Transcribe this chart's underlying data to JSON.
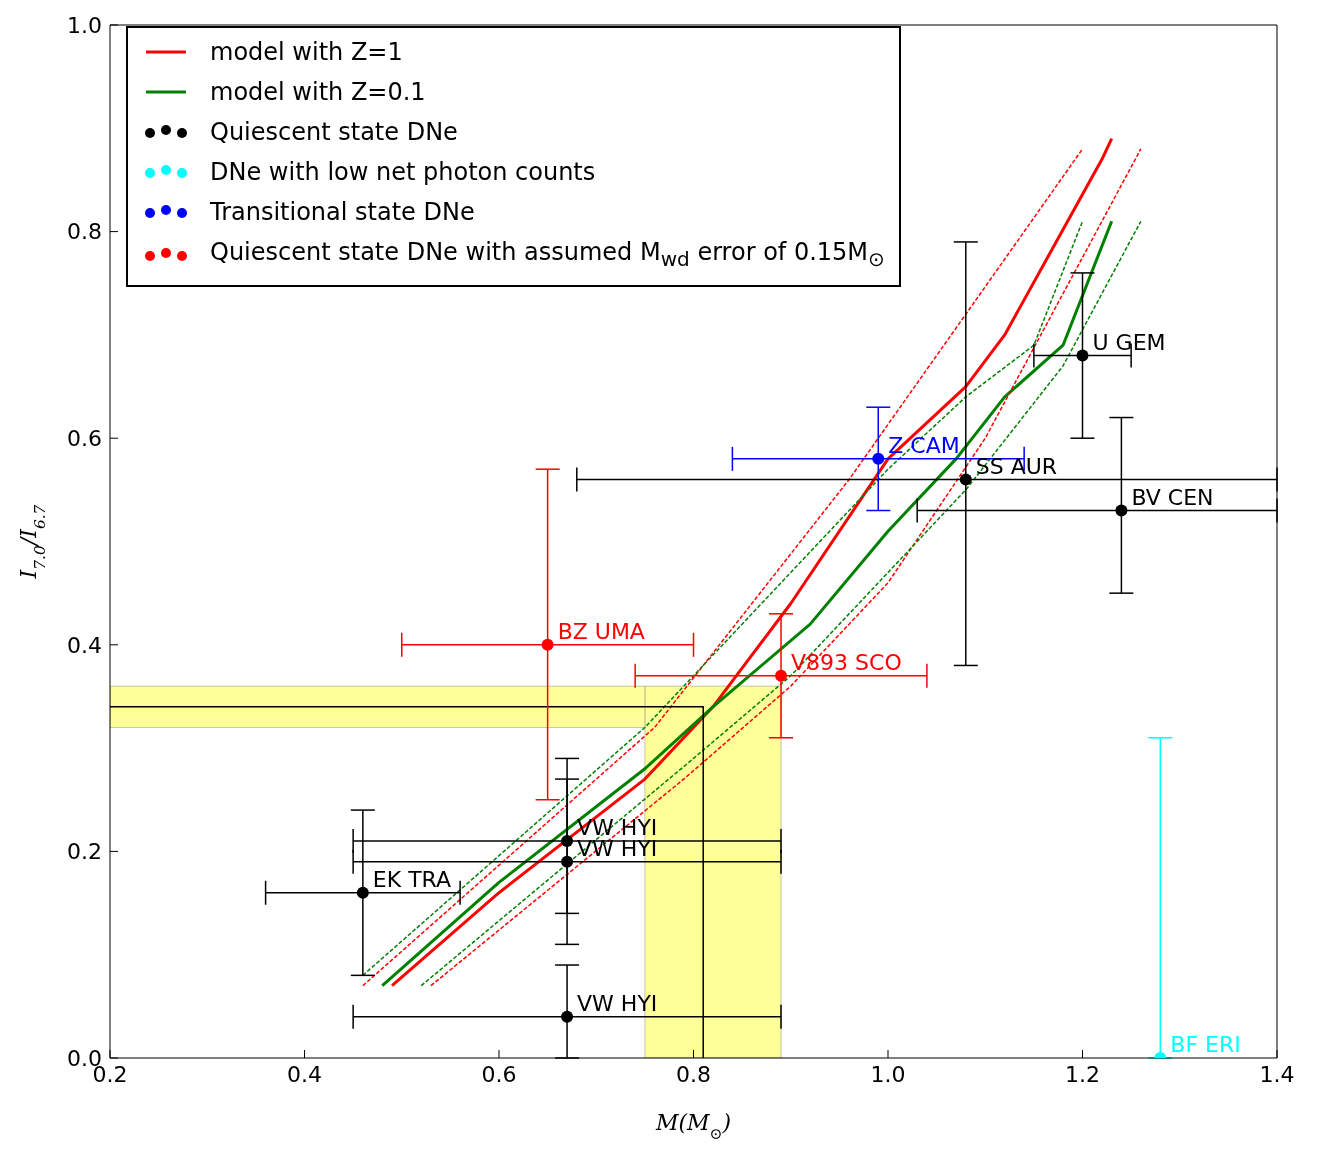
{
  "chart_data": {
    "type": "scatter",
    "xlabel": "M(M$_{⊙}$)",
    "ylabel": "I$_{7.0}$/I$_{6.7}$",
    "xlim": [
      0.2,
      1.4
    ],
    "ylim": [
      0,
      1.0
    ],
    "xticks": [
      {
        "value": 0.2,
        "label": "0.2"
      },
      {
        "value": 0.4,
        "label": "0.4"
      },
      {
        "value": 0.6,
        "label": "0.6"
      },
      {
        "value": 0.8,
        "label": "0.8"
      },
      {
        "value": 1.0,
        "label": "1.0"
      },
      {
        "value": 1.2,
        "label": "1.2"
      },
      {
        "value": 1.4,
        "label": "1.4"
      }
    ],
    "yticks": [
      {
        "value": 0,
        "label": "0.0"
      },
      {
        "value": 0.2,
        "label": "0.2"
      },
      {
        "value": 0.4,
        "label": "0.4"
      },
      {
        "value": 0.6,
        "label": "0.6"
      },
      {
        "value": 0.8,
        "label": "0.8"
      },
      {
        "value": 1.0,
        "label": "1.0"
      }
    ],
    "legend": "top left",
    "marker": "circle",
    "grid": false,
    "bands": [
      {
        "axis": "x",
        "from": 0.75,
        "to": 0.89,
        "color": "#ffff99"
      },
      {
        "axis": "y",
        "from": 0.32,
        "to": 0.36,
        "color": "#ffff99"
      }
    ],
    "series": [
      {
        "type": "line",
        "name": "model with Z=1",
        "color": "#ff0000",
        "line_style": "solid",
        "marker": "none",
        "x": [
          0.49,
          0.6,
          0.75,
          0.82,
          0.9,
          1.0,
          1.08,
          1.12,
          1.22,
          1.23
        ],
        "values": [
          0.07,
          0.16,
          0.27,
          0.34,
          0.44,
          0.58,
          0.65,
          0.7,
          0.87,
          0.89
        ]
      },
      {
        "type": "line",
        "name": "model with Z=0.1",
        "color": "#008000",
        "line_style": "solid",
        "marker": "none",
        "x": [
          0.48,
          0.6,
          0.75,
          0.82,
          0.92,
          1.0,
          1.07,
          1.12,
          1.18,
          1.23
        ],
        "values": [
          0.07,
          0.17,
          0.28,
          0.34,
          0.42,
          0.51,
          0.58,
          0.64,
          0.69,
          0.81
        ]
      },
      {
        "type": "line",
        "color": "#ff0000",
        "line_style": "dashed",
        "marker": "none",
        "x": [
          0.46,
          0.76,
          0.86,
          0.96,
          1.08,
          1.2
        ],
        "values": [
          0.07,
          0.32,
          0.44,
          0.56,
          0.72,
          0.88
        ]
      },
      {
        "type": "line",
        "color": "#ff0000",
        "line_style": "dashed",
        "marker": "none",
        "x": [
          0.53,
          0.79,
          0.9,
          1.0,
          1.1,
          1.26
        ],
        "values": [
          0.07,
          0.27,
          0.36,
          0.46,
          0.6,
          0.88
        ]
      },
      {
        "type": "line",
        "color": "#008000",
        "line_style": "dashed",
        "marker": "none",
        "x": [
          0.46,
          0.75,
          0.9,
          1.0,
          1.08,
          1.15,
          1.2
        ],
        "values": [
          0.08,
          0.32,
          0.47,
          0.57,
          0.64,
          0.69,
          0.81
        ]
      },
      {
        "type": "line",
        "color": "#008000",
        "line_style": "dashed",
        "marker": "none",
        "x": [
          0.52,
          0.8,
          0.9,
          1.0,
          1.08,
          1.18,
          1.26
        ],
        "values": [
          0.07,
          0.29,
          0.37,
          0.47,
          0.55,
          0.67,
          0.81
        ]
      },
      {
        "type": "line",
        "color": "#000000",
        "line_style": "solid",
        "marker": "none",
        "x": [
          0.2,
          0.81,
          0.81
        ],
        "values": [
          0.34,
          0.34,
          0
        ]
      },
      {
        "name": "Quiescent state DNe",
        "color": "#000000",
        "x": [
          0.46,
          0.67,
          0.67,
          0.67,
          1.08,
          1.24,
          1.2
        ],
        "values": [
          0.16,
          0.21,
          0.19,
          0.04,
          0.56,
          0.53,
          0.68
        ],
        "errors": [
          [
            0.08,
            0.24
          ],
          [
            0.14,
            0.29
          ],
          [
            0.11,
            0.27
          ],
          [
            0,
            0.09
          ],
          [
            0.38,
            0.79
          ],
          [
            0.45,
            0.62
          ],
          [
            0.6,
            0.76
          ]
        ],
        "xerrors": [
          [
            0.36,
            0.56
          ],
          [
            0.45,
            0.89
          ],
          [
            0.45,
            0.89
          ],
          [
            0.45,
            0.89
          ],
          [
            0.68,
            1.4
          ],
          [
            1.03,
            1.4
          ],
          [
            1.15,
            1.25
          ]
        ]
      },
      {
        "name": "DNe with low net photon counts",
        "color": "#00ffff",
        "x": [
          1.28
        ],
        "values": [
          0
        ],
        "errors": [
          [
            0,
            0.31
          ]
        ]
      },
      {
        "name": "Transitional state DNe",
        "color": "#0000ff",
        "x": [
          0.99
        ],
        "values": [
          0.58
        ],
        "errors": [
          [
            0.53,
            0.63
          ]
        ],
        "xerrors": [
          [
            0.84,
            1.14
          ]
        ]
      },
      {
        "name": "Quiescent state DNe with assumed M$_{wd}$ error of 0.15M$_{⊙}$",
        "color": "#ff0000",
        "x": [
          0.65,
          0.89
        ],
        "values": [
          0.4,
          0.37
        ],
        "errors": [
          [
            0.25,
            0.57
          ],
          [
            0.31,
            0.43
          ]
        ],
        "xerrors": [
          [
            0.5,
            0.8
          ],
          [
            0.74,
            1.04
          ]
        ]
      }
    ],
    "annotations": [
      {
        "text": "EK TRA",
        "x": 0.46,
        "y": 0.16
      },
      {
        "text": "VW HYI",
        "x": 0.67,
        "y": 0.21
      },
      {
        "text": "VW HYI",
        "x": 0.67,
        "y": 0.19
      },
      {
        "text": "VW HYI",
        "x": 0.67,
        "y": 0.04
      },
      {
        "text": "SS AUR",
        "x": 1.08,
        "y": 0.56
      },
      {
        "text": "BV CEN",
        "x": 1.24,
        "y": 0.53
      },
      {
        "text": "U GEM",
        "x": 1.2,
        "y": 0.68
      },
      {
        "text": "BF ERI",
        "x": 1.28,
        "y": 0
      },
      {
        "text": "Z CAM",
        "x": 0.99,
        "y": 0.58
      },
      {
        "text": "BZ UMA",
        "x": 0.65,
        "y": 0.4
      },
      {
        "text": "V893 SCO",
        "x": 0.89,
        "y": 0.37
      }
    ]
  }
}
